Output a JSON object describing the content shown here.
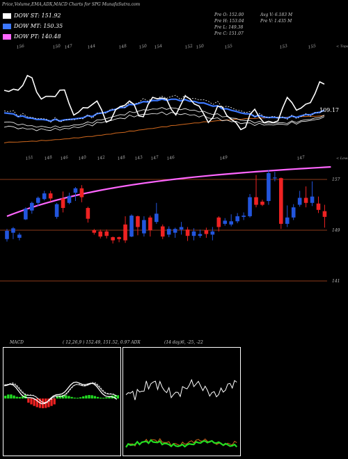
{
  "header": "Price,Volume,EMA,ADX,MACD Charts for SPG MunafaSutra.com",
  "legend": [
    {
      "label": "DOW ST: 151.92",
      "color": "#ffffff"
    },
    {
      "label": "DOW MT: 150.35",
      "color": "#3c78ff"
    },
    {
      "label": "DOW PT: 140.48",
      "color": "#ff66ff"
    }
  ],
  "info": {
    "prev_open": "Pre   O: 152.00",
    "prev_high": "Pre   H: 153.04",
    "prev_low": "Pre   L: 149.38",
    "prev_close": "Pre   C: 151.07",
    "avg_volume": "Avg V: 6.183 M",
    "prev_volume": "Pre   V: 1.435 M"
  },
  "macd_label": "MACD",
  "macd_values": "( 12,26,9 ) 152.49,  151.52,  0.97 ADX",
  "adx_values": "(14 day)6,  -25,  -22",
  "colors": {
    "up": "#2255dd",
    "down": "#ee2222",
    "ema_short": "#ffffff",
    "ema_mid": "#3c78ff",
    "ema_long": "#ff66ff",
    "orange": "#d2691e",
    "green": "#22dd22"
  },
  "chart_data": {
    "type": "candlestick",
    "price_levels": [
      {
        "label": "157",
        "value": 157
      },
      {
        "label": "149",
        "value": 149
      },
      {
        "label": "141",
        "value": 141
      }
    ],
    "top_labels": [
      "156",
      "150",
      "147",
      "144",
      "148",
      "150",
      "154",
      "152",
      "150",
      "155",
      "153",
      "155"
    ],
    "mid_labels": [
      "151",
      "148",
      "146",
      "140",
      "142",
      "148",
      "143",
      "147",
      "146",
      "149",
      "147"
    ],
    "right_value": "109.17",
    "top_right_label": "< Tops",
    "mid_right_label": "< Lows",
    "candles": [
      {
        "o": 147.6,
        "c": 148.9,
        "h": 149.2,
        "l": 147.2
      },
      {
        "o": 148.6,
        "c": 149.3,
        "h": 149.5,
        "l": 147.6
      },
      {
        "o": 147.8,
        "c": 148.3,
        "h": 148.6,
        "l": 147.4
      },
      {
        "o": 150.7,
        "c": 152.4,
        "h": 152.6,
        "l": 150.6
      },
      {
        "o": 152.1,
        "c": 153.3,
        "h": 153.5,
        "l": 151.6
      },
      {
        "o": 153.3,
        "c": 154.1,
        "h": 154.3,
        "l": 152.8
      },
      {
        "o": 153.9,
        "c": 154.8,
        "h": 155.2,
        "l": 153.7
      },
      {
        "o": 154.8,
        "c": 154.0,
        "h": 155.2,
        "l": 153.5
      },
      {
        "o": 151.1,
        "c": 153.1,
        "h": 153.3,
        "l": 150.8
      },
      {
        "o": 154.0,
        "c": 152.5,
        "h": 155.1,
        "l": 151.8
      },
      {
        "o": 153.3,
        "c": 154.4,
        "h": 154.9,
        "l": 153.1
      },
      {
        "o": 154.9,
        "c": 155.6,
        "h": 155.8,
        "l": 153.6
      },
      {
        "o": 155.6,
        "c": 154.2,
        "h": 156.1,
        "l": 153.4
      },
      {
        "o": 152.5,
        "c": 150.8,
        "h": 152.7,
        "l": 150.2
      },
      {
        "o": 149.0,
        "c": 148.6,
        "h": 149.2,
        "l": 148.3
      },
      {
        "o": 148.8,
        "c": 148.0,
        "h": 149.1,
        "l": 147.7
      },
      {
        "o": 148.8,
        "c": 148.1,
        "h": 149.1,
        "l": 147.7
      },
      {
        "o": 147.9,
        "c": 147.4,
        "h": 148.0,
        "l": 146.9
      },
      {
        "o": 147.9,
        "c": 147.6,
        "h": 148.0,
        "l": 147.1
      },
      {
        "o": 149.9,
        "c": 147.4,
        "h": 151.2,
        "l": 147.0
      },
      {
        "o": 148.0,
        "c": 151.3,
        "h": 151.5,
        "l": 147.9
      },
      {
        "o": 151.2,
        "c": 149.5,
        "h": 151.3,
        "l": 148.2
      },
      {
        "o": 148.5,
        "c": 150.6,
        "h": 151.2,
        "l": 148.0
      },
      {
        "o": 151.0,
        "c": 149.0,
        "h": 151.3,
        "l": 148.0
      },
      {
        "o": 150.3,
        "c": 151.6,
        "h": 153.3,
        "l": 150.0
      },
      {
        "o": 149.6,
        "c": 148.0,
        "h": 149.9,
        "l": 147.6
      },
      {
        "o": 148.3,
        "c": 149.2,
        "h": 149.6,
        "l": 147.9
      },
      {
        "o": 148.6,
        "c": 149.2,
        "h": 149.4,
        "l": 147.8
      },
      {
        "o": 149.1,
        "c": 149.5,
        "h": 150.3,
        "l": 148.3
      },
      {
        "o": 149.1,
        "c": 148.1,
        "h": 149.5,
        "l": 147.3
      },
      {
        "o": 148.1,
        "c": 148.8,
        "h": 149.3,
        "l": 147.4
      },
      {
        "o": 148.1,
        "c": 148.4,
        "h": 149.1,
        "l": 147.8
      },
      {
        "o": 149.0,
        "c": 148.4,
        "h": 149.4,
        "l": 147.8
      },
      {
        "o": 148.3,
        "c": 148.8,
        "h": 149.5,
        "l": 147.4
      },
      {
        "o": 151.0,
        "c": 149.5,
        "h": 151.2,
        "l": 148.8
      },
      {
        "o": 150.0,
        "c": 150.5,
        "h": 150.9,
        "l": 149.7
      },
      {
        "o": 149.9,
        "c": 150.4,
        "h": 151.5,
        "l": 149.6
      },
      {
        "o": 150.4,
        "c": 151.2,
        "h": 151.7,
        "l": 150.1
      },
      {
        "o": 151.1,
        "c": 151.3,
        "h": 151.8,
        "l": 150.6
      },
      {
        "o": 151.2,
        "c": 154.2,
        "h": 154.7,
        "l": 151.0
      },
      {
        "o": 154.2,
        "c": 153.0,
        "h": 157.7,
        "l": 152.6
      },
      {
        "o": 153.5,
        "c": 153.0,
        "h": 153.8,
        "l": 152.8
      },
      {
        "o": 153.6,
        "c": 158.0,
        "h": 158.5,
        "l": 153.0
      },
      {
        "o": 157.3,
        "c": 157.3,
        "h": 158.2,
        "l": 156.7
      },
      {
        "o": 157.2,
        "c": 150.0,
        "h": 157.3,
        "l": 149.2
      },
      {
        "o": 150.0,
        "c": 151.0,
        "h": 152.9,
        "l": 149.5
      },
      {
        "o": 151.0,
        "c": 152.6,
        "h": 153.1,
        "l": 150.6
      },
      {
        "o": 153.0,
        "c": 154.1,
        "h": 155.2,
        "l": 152.7
      },
      {
        "o": 154.1,
        "c": 153.3,
        "h": 155.9,
        "l": 152.6
      },
      {
        "o": 153.3,
        "c": 154.3,
        "h": 156.7,
        "l": 152.8
      },
      {
        "o": 153.2,
        "c": 152.2,
        "h": 154.3,
        "l": 151.7
      },
      {
        "o": 152.0,
        "c": 151.1,
        "h": 153.0,
        "l": 149.4
      }
    ]
  }
}
